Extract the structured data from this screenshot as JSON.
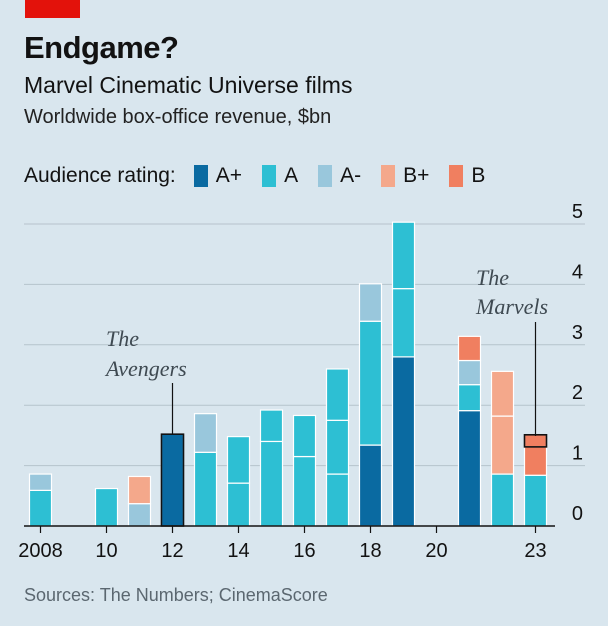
{
  "header": {
    "title": "Endgame?",
    "subtitle": "Marvel Cinematic Universe films",
    "units": "Worldwide box-office revenue, $bn"
  },
  "legend": {
    "title": "Audience rating:",
    "items": [
      {
        "label": "A+",
        "color": "#0a6aa1"
      },
      {
        "label": "A",
        "color": "#2dbfd3"
      },
      {
        "label": "A-",
        "color": "#99c7dc"
      },
      {
        "label": "B+",
        "color": "#f4a88b"
      },
      {
        "label": "B",
        "color": "#f07f60"
      }
    ]
  },
  "source": "Sources: The Numbers; CinemaScore",
  "chart_data": {
    "type": "bar",
    "stacked": true,
    "xlim": [
      2007.5,
      2024.5
    ],
    "ylim": [
      0,
      5
    ],
    "y_ticks": [
      0,
      1,
      2,
      3,
      4,
      5
    ],
    "x_ticks": [
      {
        "value": 2008,
        "label": "2008"
      },
      {
        "value": 2010,
        "label": "10"
      },
      {
        "value": 2012,
        "label": "12"
      },
      {
        "value": 2014,
        "label": "14"
      },
      {
        "value": 2016,
        "label": "16"
      },
      {
        "value": 2018,
        "label": "18"
      },
      {
        "value": 2020,
        "label": "20"
      },
      {
        "value": 2023,
        "label": "23"
      }
    ],
    "grid": "horizontal",
    "bars": [
      {
        "x": 2008,
        "segments": [
          {
            "value": 0.59,
            "rating": "A"
          },
          {
            "value": 0.27,
            "rating": "A-"
          }
        ]
      },
      {
        "x": 2010,
        "segments": [
          {
            "value": 0.62,
            "rating": "A"
          }
        ]
      },
      {
        "x": 2011,
        "segments": [
          {
            "value": 0.37,
            "rating": "A-"
          },
          {
            "value": 0.45,
            "rating": "B+"
          }
        ]
      },
      {
        "x": 2012,
        "segments": [
          {
            "value": 1.52,
            "rating": "A+"
          }
        ]
      },
      {
        "x": 2013,
        "segments": [
          {
            "value": 1.22,
            "rating": "A"
          },
          {
            "value": 0.64,
            "rating": "A-"
          }
        ]
      },
      {
        "x": 2014,
        "segments": [
          {
            "value": 0.71,
            "rating": "A"
          },
          {
            "value": 0.77,
            "rating": "A"
          }
        ]
      },
      {
        "x": 2015,
        "segments": [
          {
            "value": 1.4,
            "rating": "A"
          },
          {
            "value": 0.52,
            "rating": "A"
          }
        ]
      },
      {
        "x": 2016,
        "segments": [
          {
            "value": 1.15,
            "rating": "A"
          },
          {
            "value": 0.68,
            "rating": "A"
          }
        ]
      },
      {
        "x": 2017,
        "segments": [
          {
            "value": 0.86,
            "rating": "A"
          },
          {
            "value": 0.89,
            "rating": "A"
          },
          {
            "value": 0.85,
            "rating": "A"
          }
        ]
      },
      {
        "x": 2018,
        "segments": [
          {
            "value": 1.34,
            "rating": "A+"
          },
          {
            "value": 2.05,
            "rating": "A"
          },
          {
            "value": 0.62,
            "rating": "A-"
          }
        ]
      },
      {
        "x": 2019,
        "segments": [
          {
            "value": 2.8,
            "rating": "A+"
          },
          {
            "value": 1.13,
            "rating": "A"
          },
          {
            "value": 1.1,
            "rating": "A"
          }
        ]
      },
      {
        "x": 2021,
        "segments": [
          {
            "value": 1.91,
            "rating": "A+"
          },
          {
            "value": 0.43,
            "rating": "A"
          },
          {
            "value": 0.4,
            "rating": "A-"
          },
          {
            "value": 0.4,
            "rating": "B"
          }
        ]
      },
      {
        "x": 2022,
        "segments": [
          {
            "value": 0.86,
            "rating": "A"
          },
          {
            "value": 0.96,
            "rating": "B+"
          },
          {
            "value": 0.74,
            "rating": "B+"
          }
        ]
      },
      {
        "x": 2023,
        "segments": [
          {
            "value": 0.84,
            "rating": "A"
          },
          {
            "value": 0.47,
            "rating": "B"
          },
          {
            "value": 0.2,
            "rating": "B"
          }
        ]
      }
    ],
    "annotations": [
      {
        "text_lines": [
          "The",
          "Avengers"
        ],
        "x": 2012
      },
      {
        "text_lines": [
          "The",
          "Marvels"
        ],
        "x": 2023
      }
    ]
  }
}
